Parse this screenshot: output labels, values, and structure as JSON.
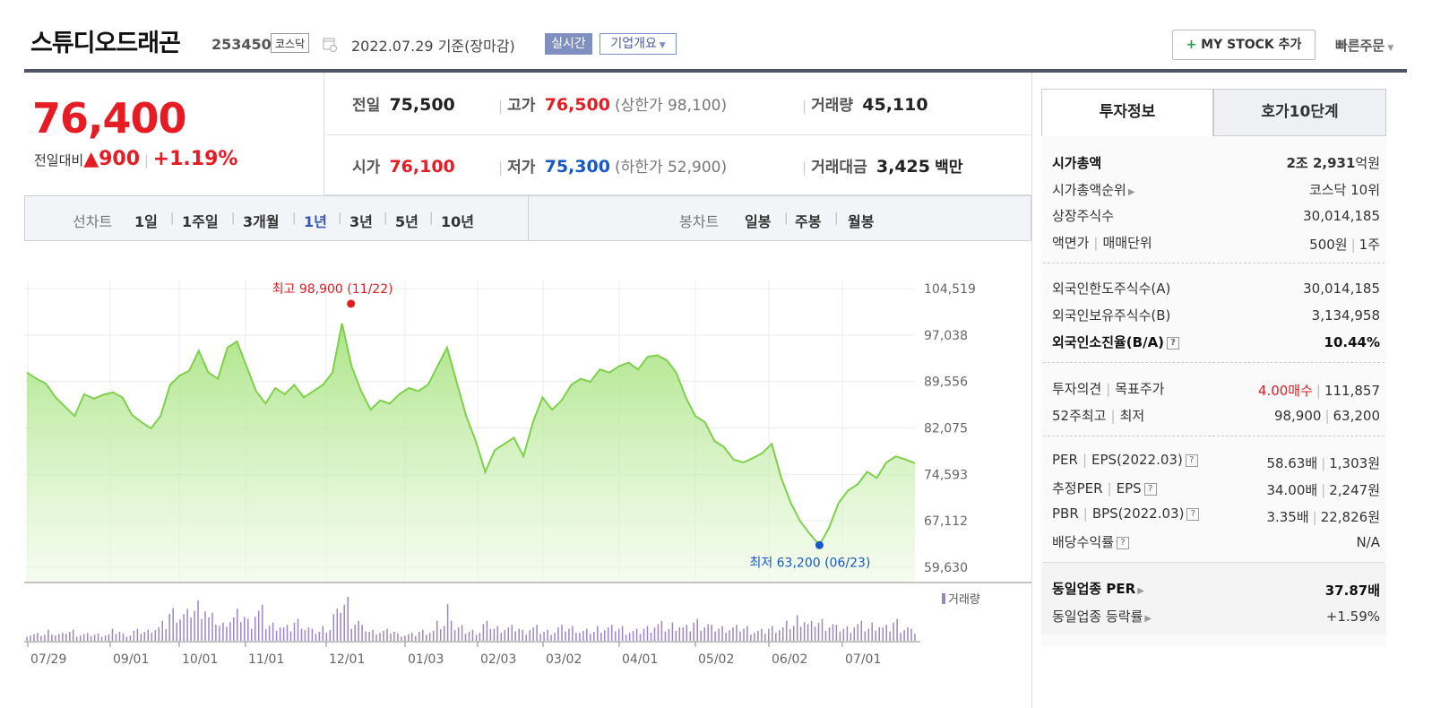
{
  "header": {
    "name": "스튜디오드래곤",
    "code": "253450",
    "market": "코스닥",
    "date_text": "2022.07.29  기준(장마감)",
    "realtime": "실시간",
    "company": "기업개요",
    "mystock_plus": "+",
    "mystock": "MY STOCK 추가",
    "quick_order": "빠른주문"
  },
  "quote": {
    "price": "76,400",
    "change_label": "전일대비",
    "change_value": "▲900",
    "change_pct": "+1.19%",
    "prev_label": "전일",
    "prev": "75,500",
    "high_label": "고가",
    "high": "76,500",
    "upper_limit": "(상한가 98,100)",
    "volume_label": "거래량",
    "volume": "45,110",
    "open_label": "시가",
    "open": "76,100",
    "low_label": "저가",
    "low": "75,300",
    "lower_limit": "(하한가 52,900)",
    "amount_label": "거래대금",
    "amount": "3,425",
    "amount_unit": "백만"
  },
  "tabs": {
    "line_label": "선차트",
    "line": [
      "1일",
      "1주일",
      "3개월",
      "1년",
      "3년",
      "5년",
      "10년"
    ],
    "candle_label": "봉차트",
    "candle": [
      "일봉",
      "주봉",
      "월봉"
    ]
  },
  "colors": {
    "up": "#e51c23",
    "down": "#1657c9",
    "line": "#7ed04b",
    "volume": "#9a86c2"
  },
  "chart_data": {
    "type": "area",
    "y_ticks": [
      "104,519",
      "97,038",
      "89,556",
      "82,075",
      "74,593",
      "67,112",
      "59,630"
    ],
    "ylim": [
      59630,
      104519
    ],
    "x_ticks": [
      "07/29",
      "09/01",
      "10/01",
      "11/01",
      "12/01",
      "01/03",
      "02/03",
      "03/02",
      "04/01",
      "05/02",
      "06/02",
      "07/01"
    ],
    "max_label": "최고 98,900 (11/22)",
    "min_label": "최저 63,200 (06/23)",
    "volume_legend": "거래량",
    "price_series": [
      91000,
      90000,
      89200,
      87000,
      85500,
      84000,
      87500,
      86800,
      87400,
      87800,
      87000,
      84200,
      83000,
      82000,
      84000,
      89000,
      90500,
      91300,
      94500,
      91000,
      90000,
      95000,
      96000,
      92000,
      88000,
      86000,
      88500,
      87500,
      89000,
      87000,
      88000,
      89000,
      91000,
      98900,
      92000,
      88000,
      85000,
      86500,
      86000,
      87500,
      88500,
      88000,
      89000,
      92000,
      95000,
      89500,
      84000,
      80000,
      75000,
      78500,
      79500,
      80500,
      77500,
      83000,
      87000,
      85000,
      86500,
      89000,
      90000,
      89500,
      91500,
      91000,
      92000,
      92600,
      91500,
      93500,
      93800,
      93000,
      91000,
      87000,
      84000,
      83000,
      80000,
      79000,
      77000,
      76500,
      77200,
      78000,
      79500,
      74000,
      70000,
      67000,
      65000,
      63200,
      66000,
      70000,
      72000,
      73000,
      75000,
      74000,
      76500,
      77500,
      77000,
      76400
    ],
    "volume_series": [
      2,
      2,
      3,
      2,
      3,
      2,
      2,
      2,
      2,
      3,
      2,
      3,
      3,
      4,
      5,
      9,
      8,
      10,
      11,
      7,
      5,
      7,
      8,
      6,
      9,
      5,
      5,
      4,
      6,
      4,
      3,
      4,
      8,
      12,
      6,
      4,
      3,
      3,
      3,
      2,
      2,
      3,
      3,
      5,
      10,
      4,
      3,
      3,
      5,
      4,
      4,
      4,
      3,
      4,
      3,
      3,
      4,
      4,
      3,
      3,
      4,
      4,
      4,
      3,
      3,
      4,
      5,
      4,
      5,
      4,
      6,
      5,
      4,
      4,
      4,
      4,
      3,
      3,
      4,
      4,
      5,
      7,
      5,
      6,
      5,
      4,
      4,
      5,
      4,
      5,
      4,
      6,
      4,
      3
    ],
    "max_index": 33,
    "min_index": 83
  },
  "right_panel": {
    "tab_active": "투자정보",
    "tab_other": "호가10단계",
    "market_cap_label": "시가총액",
    "market_cap_num": "2조 2,931",
    "market_cap_unit": "억원",
    "rank_label": "시가총액순위",
    "rank": "코스닥 10위",
    "shares_label": "상장주식수",
    "shares": "30,014,185",
    "par_label": "액면가",
    "par_label2": "매매단위",
    "par": "500원",
    "unit": "1주",
    "foreign_limit_label": "외국인한도주식수(A)",
    "foreign_limit": "30,014,185",
    "foreign_hold_label": "외국인보유주식수(B)",
    "foreign_hold": "3,134,958",
    "foreign_ratio_label": "외국인소진율(B/A)",
    "foreign_ratio": "10.44%",
    "opinion_label": "투자의견",
    "target_label": "목표주가",
    "opinion": "4.00매수",
    "target": "111,857",
    "w52_label": "52주최고",
    "w52_label2": "최저",
    "w52_high": "98,900",
    "w52_low": "63,200",
    "per_label": "PER",
    "eps_label": "EPS(2022.03)",
    "per": "58.63배",
    "eps": "1,303원",
    "eper_label": "추정PER",
    "eeps_label": "EPS",
    "eper": "34.00배",
    "eeps": "2,247원",
    "pbr_label": "PBR",
    "bps_label": "BPS(2022.03)",
    "pbr": "3.35배",
    "bps": "22,826원",
    "div_label": "배당수익률",
    "div": "N/A",
    "sector_per_label": "동일업종 PER",
    "sector_per": "37.87배",
    "sector_chg_label": "동일업종 등락률",
    "sector_chg": "+1.59%"
  }
}
